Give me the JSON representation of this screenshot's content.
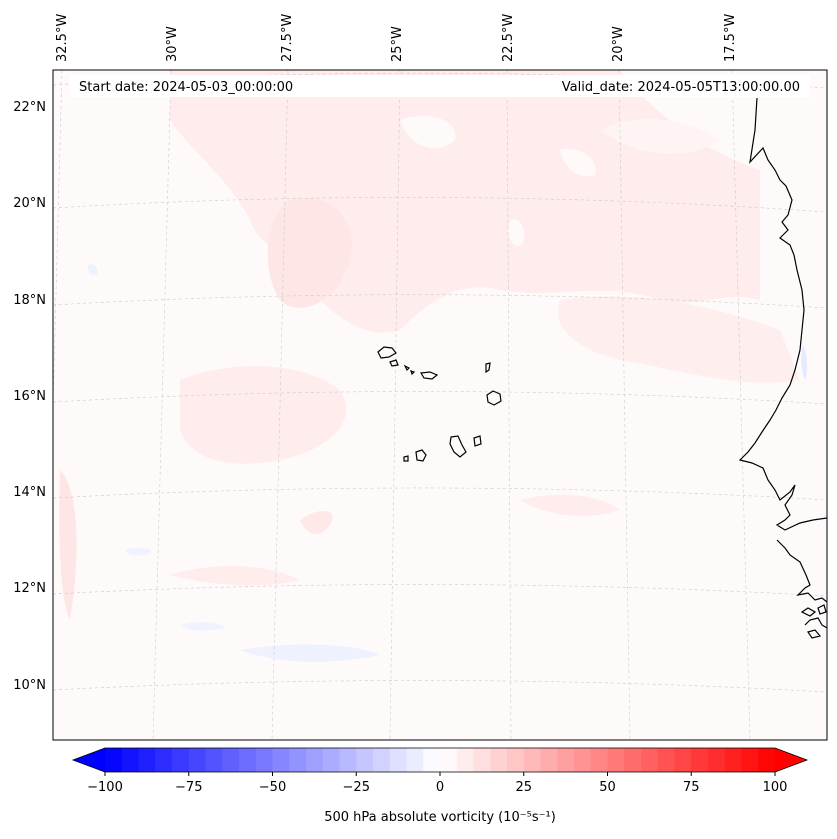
{
  "header": {
    "start_date": "Start date: 2024-05-03_00:00:00",
    "valid_date": "Valid_date: 2024-05-05T13:00:00.00"
  },
  "map": {
    "lon_labels": [
      "32.5°W",
      "30°W",
      "27.5°W",
      "25°W",
      "22.5°W",
      "20°W",
      "17.5°W"
    ],
    "lat_labels": [
      "22°N",
      "20°N",
      "18°N",
      "16°N",
      "14°N",
      "12°N",
      "10°N"
    ],
    "field_colors": {
      "positive": "#ffe8e8",
      "positive_light": "#fff3f3",
      "negative": "#eef2ff",
      "coast": "#000000"
    }
  },
  "colorbar": {
    "label": "500 hPa absolute vorticity (10⁻⁵s⁻¹)",
    "ticks": [
      "−100",
      "−75",
      "−50",
      "−25",
      "0",
      "25",
      "50",
      "75",
      "100"
    ],
    "min": -100,
    "max": 100,
    "color_low": "#0000ff",
    "color_mid": "#ffffff",
    "color_high": "#ff0000"
  }
}
